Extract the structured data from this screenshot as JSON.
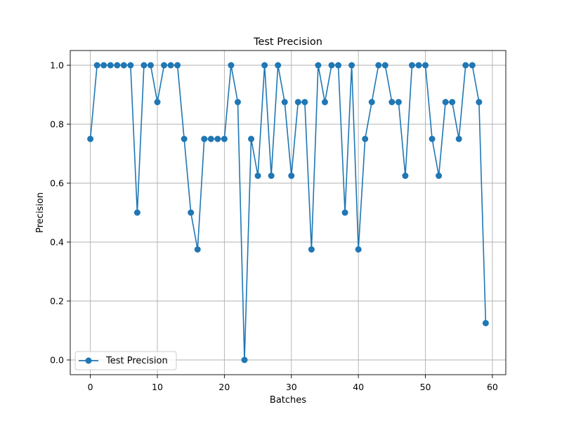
{
  "chart_data": {
    "type": "line",
    "title": "Test Precision",
    "xlabel": "Batches",
    "ylabel": "Precision",
    "xlim": [
      -3,
      62
    ],
    "ylim": [
      -0.05,
      1.05
    ],
    "x_ticks": [
      0,
      10,
      20,
      30,
      40,
      50,
      60
    ],
    "y_ticks": [
      0.0,
      0.2,
      0.4,
      0.6,
      0.8,
      1.0
    ],
    "grid": true,
    "legend_position": "lower-left",
    "series": [
      {
        "name": "Test Precision",
        "color": "#1f77b4",
        "marker": "circle",
        "x": [
          0,
          1,
          2,
          3,
          4,
          5,
          6,
          7,
          8,
          9,
          10,
          11,
          12,
          13,
          14,
          15,
          16,
          17,
          18,
          19,
          20,
          21,
          22,
          23,
          24,
          25,
          26,
          27,
          28,
          29,
          30,
          31,
          32,
          33,
          34,
          35,
          36,
          37,
          38,
          39,
          40,
          41,
          42,
          43,
          44,
          45,
          46,
          47,
          48,
          49,
          50,
          51,
          52,
          53,
          54,
          55,
          56,
          57,
          58,
          59
        ],
        "y": [
          0.75,
          1.0,
          1.0,
          1.0,
          1.0,
          1.0,
          1.0,
          0.5,
          1.0,
          1.0,
          0.875,
          1.0,
          1.0,
          1.0,
          0.75,
          0.5,
          0.375,
          0.75,
          0.75,
          0.75,
          0.75,
          1.0,
          0.875,
          0.0,
          0.75,
          0.625,
          1.0,
          0.625,
          1.0,
          0.875,
          0.625,
          0.875,
          0.875,
          0.375,
          1.0,
          0.875,
          1.0,
          1.0,
          0.5,
          1.0,
          0.375,
          0.75,
          0.875,
          1.0,
          1.0,
          0.875,
          0.875,
          0.625,
          1.0,
          1.0,
          1.0,
          0.75,
          0.625,
          0.875,
          0.875,
          0.75,
          1.0,
          1.0,
          0.875,
          0.125
        ]
      }
    ]
  }
}
